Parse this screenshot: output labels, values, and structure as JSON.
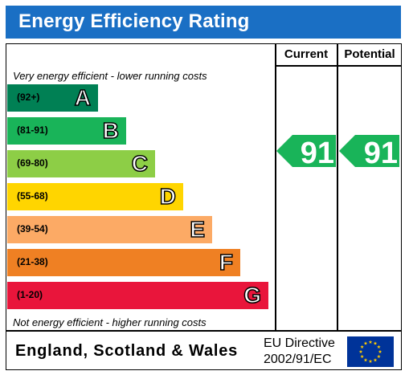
{
  "header": {
    "title": "Energy Efficiency Rating"
  },
  "columns": {
    "current": "Current",
    "potential": "Potential"
  },
  "notes": {
    "top": "Very energy efficient - lower running costs",
    "bottom": "Not energy efficient - higher running costs"
  },
  "footer": {
    "country": "England, Scotland & Wales",
    "directive_line1": "EU Directive",
    "directive_line2": "2002/91/EC"
  },
  "colors": {
    "header_bg": "#1a6fc4",
    "band_a": "#008054",
    "band_b": "#19b459",
    "band_c": "#8dce46",
    "band_d": "#ffd500",
    "band_e": "#fcaa65",
    "band_f": "#ef8023",
    "band_g": "#e9153b",
    "eu_blue": "#003399",
    "eu_star": "#ffcc00"
  },
  "chart_data": {
    "type": "bar",
    "categories": [
      "A",
      "B",
      "C",
      "D",
      "E",
      "F",
      "G"
    ],
    "ranges": [
      "(92+)",
      "(81-91)",
      "(69-80)",
      "(55-68)",
      "(39-54)",
      "(21-38)",
      "(1-20)"
    ],
    "current": {
      "value": "91",
      "band": "B"
    },
    "potential": {
      "value": "91",
      "band": "B"
    }
  }
}
